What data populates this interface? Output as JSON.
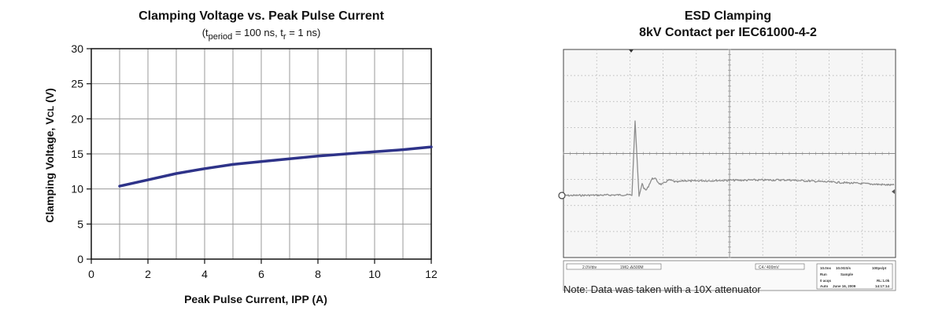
{
  "chart_data": [
    {
      "type": "line",
      "title": "Clamping Voltage vs. Peak Pulse Current",
      "subtitle": {
        "p1": "(t",
        "sub1": "period",
        "p2": " = 100 ns, t",
        "sub2": "r",
        "p3": " = 1 ns)"
      },
      "xlabel": "Peak Pulse Current, IPP (A)",
      "ylabel": {
        "main": "Clamping Voltage, V",
        "sub": "CL",
        "unit": " (V)"
      },
      "xlim": [
        0,
        12
      ],
      "ylim": [
        0,
        30
      ],
      "x_ticks": [
        "0",
        "2",
        "4",
        "6",
        "8",
        "10",
        "12"
      ],
      "y_ticks": [
        "0",
        "5",
        "10",
        "15",
        "20",
        "25",
        "30"
      ],
      "grid": true,
      "line_color": "#2e3389",
      "series": [
        {
          "x": [
            1,
            2,
            3,
            4,
            5,
            6,
            7,
            8,
            9,
            10,
            11,
            12
          ],
          "values": [
            10.4,
            11.3,
            12.2,
            12.9,
            13.5,
            13.9,
            14.3,
            14.7,
            15.0,
            15.3,
            15.6,
            16.0
          ]
        }
      ]
    },
    {
      "type": "line",
      "title": "ESD Clamping",
      "subtitle": "8kV Contact per IEC61000-4-2",
      "note": "Note: Data was taken with a 10X attenuator",
      "grid": true,
      "grid_divisions": {
        "x": 10,
        "y": 8
      },
      "scope_status": {
        "ch1_scale": "2.0V/div",
        "coupling": "1MΩ ⁂500M",
        "trigger": "C4 ⁄ 400mV",
        "timebase": "10.0ns",
        "sample_rate": "10.0GS/s",
        "points": "100ps/pt",
        "mode": "Run",
        "acq_type": "Sample",
        "acqs": "0 acqs",
        "record_length": "RL:1.0k",
        "trigger_mode": "Auto",
        "date": "June 16, 2009",
        "time": "14:17:14"
      }
    }
  ]
}
